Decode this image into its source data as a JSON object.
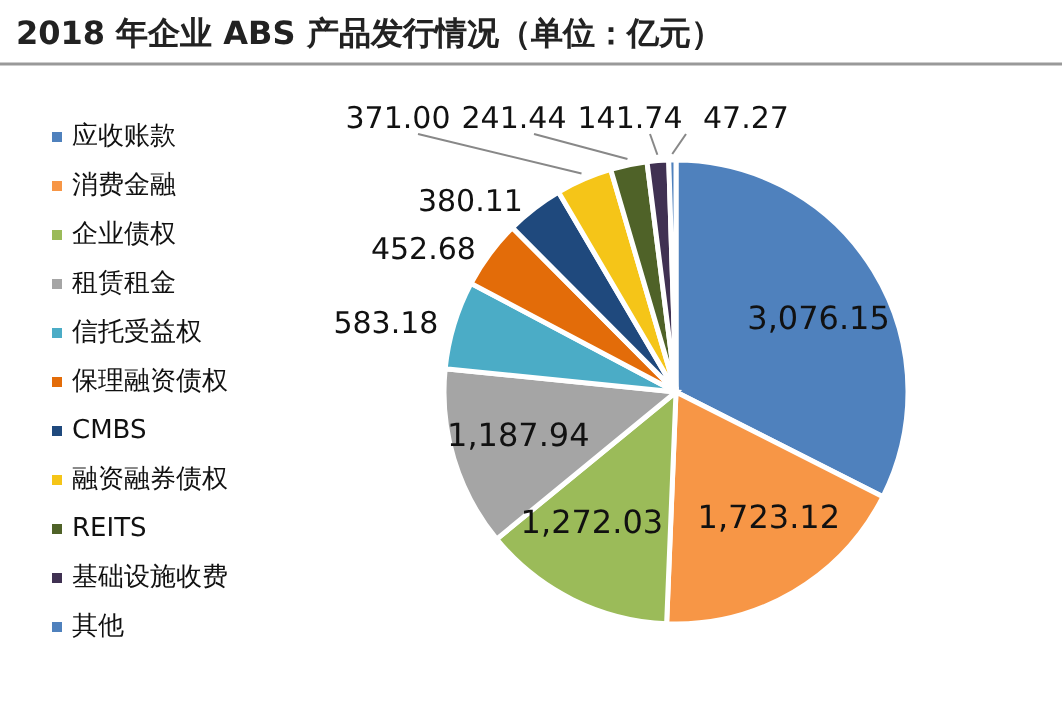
{
  "chart_data": {
    "type": "pie",
    "title": "2018 年企业 ABS 产品发行情况（单位：亿元）",
    "categories": [
      "应收账款",
      "消费金融",
      "企业债权",
      "租赁租金",
      "信托受益权",
      "保理融资债权",
      "CMBS",
      "融资融券债权",
      "REITS",
      "基础设施收费",
      "其他"
    ],
    "values": [
      3076.15,
      1723.12,
      1272.03,
      1187.94,
      583.18,
      452.68,
      380.11,
      371.0,
      241.44,
      141.74,
      47.27
    ],
    "value_labels": [
      "3,076.15",
      "1,723.12",
      "1,272.03",
      "1,187.94",
      "583.18",
      "452.68",
      "380.11",
      "371.00",
      "241.44",
      "141.74",
      "47.27"
    ],
    "colors": [
      "#4f81bd",
      "#f79646",
      "#9bbb59",
      "#a5a5a5",
      "#4bacc6",
      "#e36c09",
      "#1f497d",
      "#f5c518",
      "#4f6228",
      "#403152",
      "#4f81bd"
    ],
    "legend": "left"
  }
}
